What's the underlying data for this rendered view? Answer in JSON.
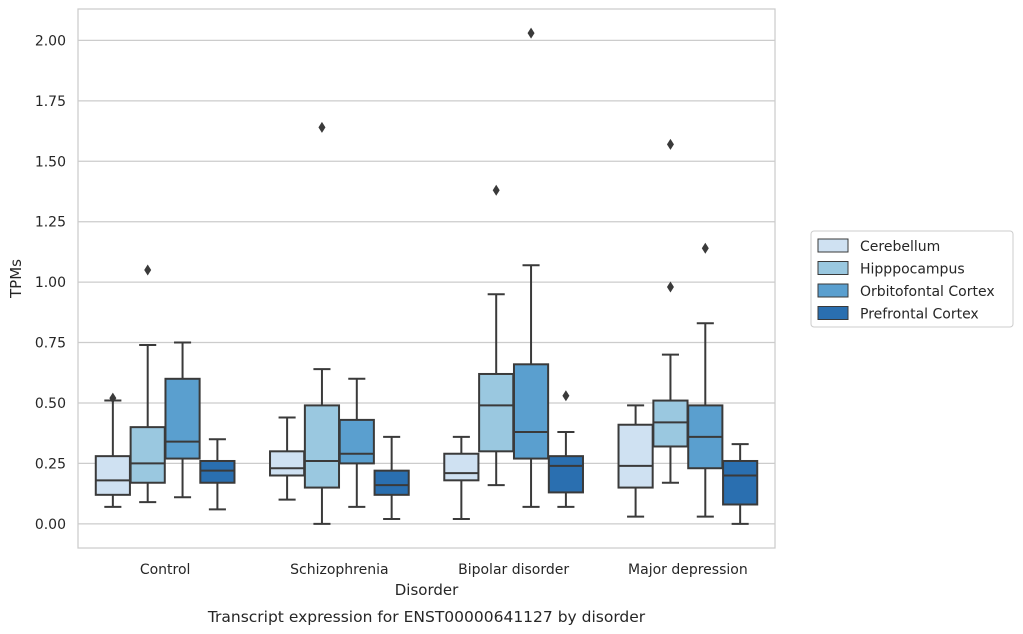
{
  "chart_data": {
    "type": "box",
    "caption": "Transcript expression for ENST00000641127 by disorder",
    "xlabel": "Disorder",
    "ylabel": "TPMs",
    "ylim": [
      -0.1,
      2.13
    ],
    "yticks": [
      0.0,
      0.25,
      0.5,
      0.75,
      1.0,
      1.25,
      1.5,
      1.75,
      2.0
    ],
    "ytick_labels": [
      "0.00",
      "0.25",
      "0.50",
      "0.75",
      "1.00",
      "1.25",
      "1.50",
      "1.75",
      "2.00"
    ],
    "grid": "horizontal",
    "legend_position": "right",
    "categories": [
      "Control",
      "Schizophrenia",
      "Bipolar disorder",
      "Major depression"
    ],
    "series": [
      {
        "name": "Cerebellum",
        "color": "#cfe1f2",
        "boxes": [
          {
            "whislo": 0.07,
            "q1": 0.12,
            "med": 0.18,
            "q3": 0.28,
            "whishi": 0.51,
            "fliers": [
              0.52
            ]
          },
          {
            "whislo": 0.1,
            "q1": 0.2,
            "med": 0.23,
            "q3": 0.3,
            "whishi": 0.44,
            "fliers": []
          },
          {
            "whislo": 0.02,
            "q1": 0.18,
            "med": 0.21,
            "q3": 0.29,
            "whishi": 0.36,
            "fliers": []
          },
          {
            "whislo": 0.03,
            "q1": 0.15,
            "med": 0.24,
            "q3": 0.41,
            "whishi": 0.49,
            "fliers": []
          }
        ]
      },
      {
        "name": "Hipppocampus",
        "color": "#9ac8e0",
        "boxes": [
          {
            "whislo": 0.09,
            "q1": 0.17,
            "med": 0.25,
            "q3": 0.4,
            "whishi": 0.74,
            "fliers": [
              1.05
            ]
          },
          {
            "whislo": 0.0,
            "q1": 0.15,
            "med": 0.26,
            "q3": 0.49,
            "whishi": 0.64,
            "fliers": [
              1.64
            ]
          },
          {
            "whislo": 0.16,
            "q1": 0.3,
            "med": 0.49,
            "q3": 0.62,
            "whishi": 0.95,
            "fliers": [
              1.38
            ]
          },
          {
            "whislo": 0.17,
            "q1": 0.32,
            "med": 0.42,
            "q3": 0.51,
            "whishi": 0.7,
            "fliers": [
              0.98,
              1.57
            ]
          }
        ]
      },
      {
        "name": "Orbitofontal Cortex",
        "color": "#5a9fcf",
        "boxes": [
          {
            "whislo": 0.11,
            "q1": 0.27,
            "med": 0.34,
            "q3": 0.6,
            "whishi": 0.75,
            "fliers": []
          },
          {
            "whislo": 0.07,
            "q1": 0.25,
            "med": 0.29,
            "q3": 0.43,
            "whishi": 0.6,
            "fliers": []
          },
          {
            "whislo": 0.07,
            "q1": 0.27,
            "med": 0.38,
            "q3": 0.66,
            "whishi": 1.07,
            "fliers": [
              2.03
            ]
          },
          {
            "whislo": 0.03,
            "q1": 0.23,
            "med": 0.36,
            "q3": 0.49,
            "whishi": 0.83,
            "fliers": [
              1.14
            ]
          }
        ]
      },
      {
        "name": "Prefrontal Cortex",
        "color": "#2a6fb0",
        "boxes": [
          {
            "whislo": 0.06,
            "q1": 0.17,
            "med": 0.22,
            "q3": 0.26,
            "whishi": 0.35,
            "fliers": []
          },
          {
            "whislo": 0.02,
            "q1": 0.12,
            "med": 0.16,
            "q3": 0.22,
            "whishi": 0.36,
            "fliers": []
          },
          {
            "whislo": 0.07,
            "q1": 0.13,
            "med": 0.24,
            "q3": 0.28,
            "whishi": 0.38,
            "fliers": [
              0.53
            ]
          },
          {
            "whislo": 0.0,
            "q1": 0.08,
            "med": 0.2,
            "q3": 0.26,
            "whishi": 0.33,
            "fliers": []
          }
        ]
      }
    ]
  }
}
